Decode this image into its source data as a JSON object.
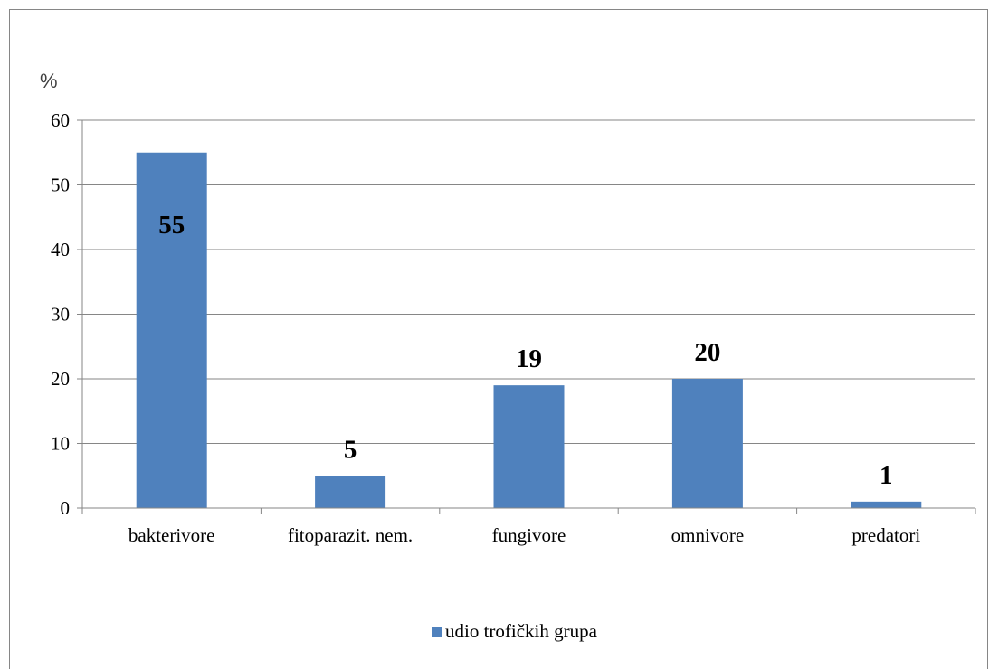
{
  "chart_data": {
    "type": "bar",
    "title": "",
    "xlabel": "",
    "ylabel": "%",
    "categories": [
      "bakterivore",
      "fitoparazit. nem.",
      "fungivore",
      "omnivore",
      "predatori"
    ],
    "series": [
      {
        "name": "udio trofičkih grupa",
        "values": [
          55,
          5,
          19,
          20,
          1
        ],
        "color": "#4F81BD"
      }
    ],
    "data_labels": [
      "55",
      "5",
      "19",
      "20",
      "1"
    ],
    "ylim": [
      0,
      60
    ],
    "yticks": [
      0,
      10,
      20,
      30,
      40,
      50,
      60
    ],
    "grid": true,
    "legend_position": "bottom",
    "colors": {
      "bar": "#4F81BD",
      "grid": "#868686",
      "axis": "#868686"
    }
  }
}
